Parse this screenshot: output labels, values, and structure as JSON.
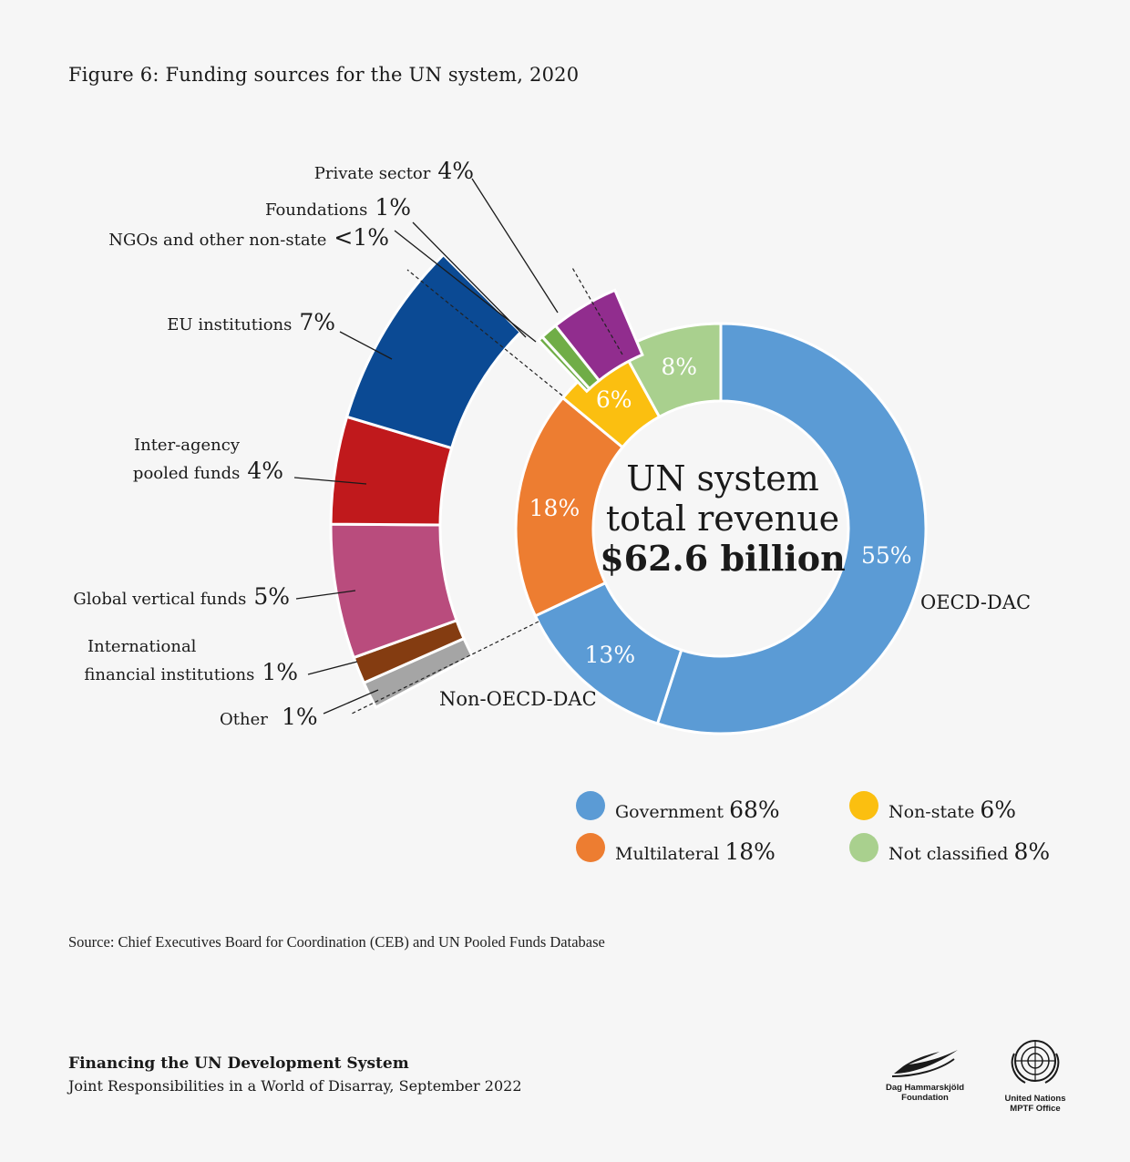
{
  "title": "Figure 6: Funding sources for the UN system, 2020",
  "center": {
    "line1": "UN system",
    "line2": "total revenue",
    "line3": "$62.6 billion"
  },
  "colors": {
    "government": "#5b9bd5",
    "multilateral": "#ed7d31",
    "nonstate": "#fbbf10",
    "notclassified": "#a9d08e",
    "eu": "#0b4a94",
    "interagency": "#c0191c",
    "global": "#b94c7d",
    "ifi": "#843c11",
    "other": "#a5a5a5",
    "ngo": "#70ad47",
    "foundations": "#70ad47",
    "private": "#912d8e"
  },
  "chart_data": {
    "type": "pie",
    "title": "Figure 6: Funding sources for the UN system, 2020",
    "total": "$62.6 billion",
    "inner_ring": [
      {
        "label": "OECD-DAC",
        "value": 55,
        "display": "55%",
        "group": "government"
      },
      {
        "label": "Non-OECD-DAC",
        "value": 13,
        "display": "13%",
        "group": "government"
      },
      {
        "label": "",
        "value": 18,
        "display": "18%",
        "group": "multilateral"
      },
      {
        "label": "",
        "value": 6,
        "display": "6%",
        "group": "nonstate"
      },
      {
        "label": "",
        "value": 8,
        "display": "8%",
        "group": "notclassified"
      }
    ],
    "multilateral_breakdown": [
      {
        "label": "EU institutions",
        "value": 7,
        "display": "7%"
      },
      {
        "label": "Inter-agency pooled funds",
        "value": 4,
        "display": "4%"
      },
      {
        "label": "Global vertical funds",
        "value": 5,
        "display": "5%"
      },
      {
        "label": "International financial institutions",
        "value": 1,
        "display": "1%"
      },
      {
        "label": "Other",
        "value": 1,
        "display": "1%"
      }
    ],
    "nonstate_breakdown": [
      {
        "label": "NGOs and other non-state",
        "value": 0.3,
        "display": "<1%"
      },
      {
        "label": "Foundations",
        "value": 1,
        "display": "1%"
      },
      {
        "label": "Private sector",
        "value": 4,
        "display": "4%"
      }
    ],
    "legend": [
      {
        "label": "Government",
        "value": "68%",
        "color": "#5b9bd5"
      },
      {
        "label": "Multilateral",
        "value": "18%",
        "color": "#ed7d31"
      },
      {
        "label": "Non-state",
        "value": "6%",
        "color": "#fbbf10"
      },
      {
        "label": "Not classified",
        "value": "8%",
        "color": "#a9d08e"
      }
    ]
  },
  "labels": {
    "oecd": "OECD-DAC",
    "nonoecd": "Non-OECD-DAC",
    "eu": "EU institutions",
    "eu_pct": "7%",
    "inter1": "Inter-agency",
    "inter2": "pooled funds",
    "inter_pct": "4%",
    "global": "Global vertical funds",
    "global_pct": "5%",
    "ifi1": "International",
    "ifi2": "financial institutions",
    "ifi_pct": "1%",
    "other": "Other",
    "other_pct": "1%",
    "ngo": "NGOs and other non-state",
    "ngo_pct": "<1%",
    "found": "Foundations",
    "found_pct": "1%",
    "priv": "Private sector",
    "priv_pct": "4%"
  },
  "source": "Source: Chief Executives Board for Coordination (CEB) and UN Pooled Funds Database",
  "footer": {
    "title": "Financing the UN Development System",
    "subtitle": "Joint Responsibilities in a World of Disarray, September 2022",
    "logo1": [
      "Dag Hammarskjöld",
      "Foundation"
    ],
    "logo2": [
      "United Nations",
      "MPTF Office"
    ]
  }
}
